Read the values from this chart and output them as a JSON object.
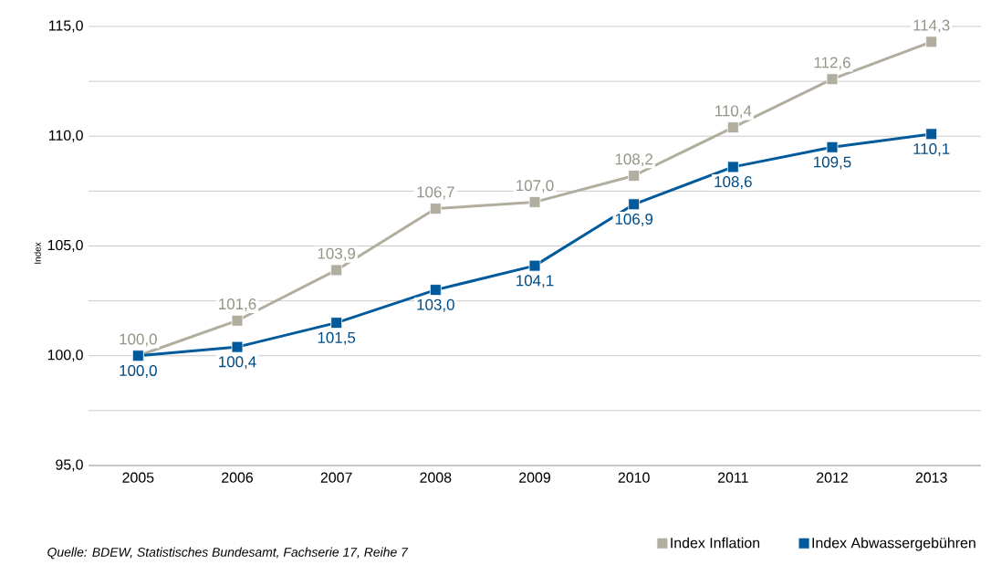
{
  "chart_data": {
    "type": "line",
    "ylabel": "Index",
    "categories": [
      "2005",
      "2006",
      "2007",
      "2008",
      "2009",
      "2010",
      "2011",
      "2012",
      "2013"
    ],
    "series": [
      {
        "name": "Index Inflation",
        "color": "#b1ae9f",
        "values": [
          100.0,
          101.6,
          103.9,
          106.7,
          107.0,
          108.2,
          110.4,
          112.6,
          114.3
        ],
        "value_labels": [
          "100,0",
          "101,6",
          "103,9",
          "106,7",
          "107,0",
          "108,2",
          "110,4",
          "112,6",
          "114,3"
        ]
      },
      {
        "name": "Index Abwassergebühren",
        "color": "#005a9c",
        "values": [
          100.0,
          100.4,
          101.5,
          103.0,
          104.1,
          106.9,
          108.6,
          109.5,
          110.1
        ],
        "value_labels": [
          "100,0",
          "100,4",
          "101,5",
          "103,0",
          "104,1",
          "106,9",
          "108,6",
          "109,5",
          "110,1"
        ]
      }
    ],
    "ylim": [
      95,
      115
    ],
    "yticks": [
      {
        "value": 95,
        "label": "95,0"
      },
      {
        "value": 97.5,
        "label": null
      },
      {
        "value": 100,
        "label": "100,0"
      },
      {
        "value": 102.5,
        "label": null
      },
      {
        "value": 105,
        "label": "105,0"
      },
      {
        "value": 107.5,
        "label": null
      },
      {
        "value": 110,
        "label": "110,0"
      },
      {
        "value": 112.5,
        "label": null
      },
      {
        "value": 115,
        "label": "115,0"
      }
    ],
    "grid": "y",
    "legend": "bottom right",
    "marker": "square",
    "line_style": "solid",
    "annotations": [
      "Quelle: BDEW, Statistisches Bundesamt, Fachserie 17, Reihe 7"
    ]
  }
}
